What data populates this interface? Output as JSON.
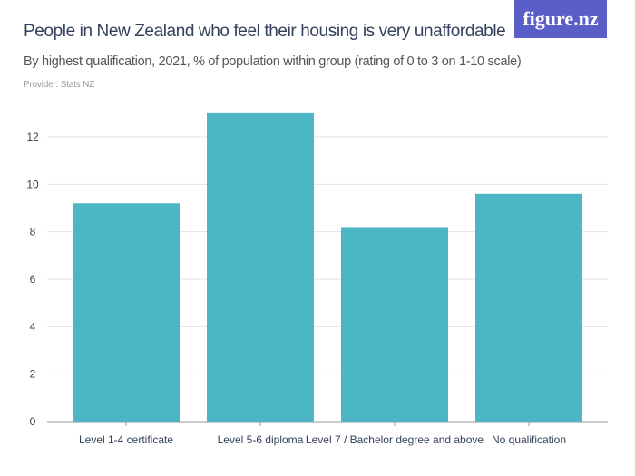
{
  "header": {
    "title": "People in New Zealand who feel their housing is very unaffordable",
    "subtitle": "By highest qualification, 2021, % of population within group (rating of 0 to 3 on 1-10 scale)",
    "provider": "Provider: Stats NZ",
    "logo": "figure.nz"
  },
  "colors": {
    "bar": "#4db6c4",
    "logo_bg": "#5a5fc8",
    "title": "#33415c"
  },
  "chart_data": {
    "type": "bar",
    "title": "People in New Zealand who feel their housing is very unaffordable",
    "categories": [
      "Level 1-4 certificate",
      "Level 5-6 diploma",
      "Level 7 / Bachelor degree and above",
      "No qualification"
    ],
    "values": [
      9.2,
      13.0,
      8.2,
      9.6
    ],
    "ylim": [
      0,
      13
    ],
    "yticks": [
      0,
      2,
      4,
      6,
      8,
      10,
      12
    ],
    "grid": true,
    "xlabel": "",
    "ylabel": ""
  }
}
